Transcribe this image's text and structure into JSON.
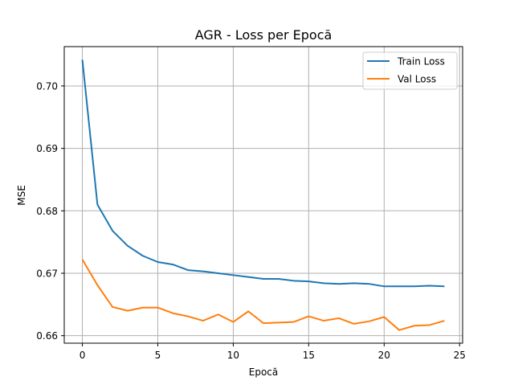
{
  "chart_data": {
    "type": "line",
    "title": "AGR - Loss per Epocă",
    "xlabel": "Epocă",
    "ylabel": "MSE",
    "xlim": [
      -1.2,
      25.2
    ],
    "ylim": [
      0.6588,
      0.7063
    ],
    "xticks": [
      0,
      5,
      10,
      15,
      20,
      25
    ],
    "yticks": [
      0.66,
      0.67,
      0.68,
      0.69,
      0.7
    ],
    "xtick_labels": [
      "0",
      "5",
      "10",
      "15",
      "20",
      "25"
    ],
    "ytick_labels": [
      "0.66",
      "0.67",
      "0.68",
      "0.69",
      "0.70"
    ],
    "grid": true,
    "legend_position": "top-right",
    "x": [
      0,
      1,
      2,
      3,
      4,
      5,
      6,
      7,
      8,
      9,
      10,
      11,
      12,
      13,
      14,
      15,
      16,
      17,
      18,
      19,
      20,
      21,
      22,
      23,
      24
    ],
    "series": [
      {
        "name": "Train Loss",
        "color": "#1f77b4",
        "values": [
          0.7042,
          0.681,
          0.6768,
          0.6744,
          0.6728,
          0.6718,
          0.6714,
          0.6705,
          0.6703,
          0.67,
          0.6697,
          0.6694,
          0.6691,
          0.6691,
          0.6688,
          0.6687,
          0.6684,
          0.6683,
          0.6684,
          0.6683,
          0.6679,
          0.6679,
          0.6679,
          0.668,
          0.6679
        ]
      },
      {
        "name": "Val Loss",
        "color": "#ff7f0e",
        "values": [
          0.6722,
          0.6681,
          0.6646,
          0.664,
          0.6645,
          0.6645,
          0.6636,
          0.6631,
          0.6624,
          0.6634,
          0.6622,
          0.6639,
          0.662,
          0.6621,
          0.6622,
          0.6631,
          0.6624,
          0.6628,
          0.6619,
          0.6623,
          0.663,
          0.6609,
          0.6616,
          0.6617,
          0.6624
        ]
      }
    ]
  }
}
